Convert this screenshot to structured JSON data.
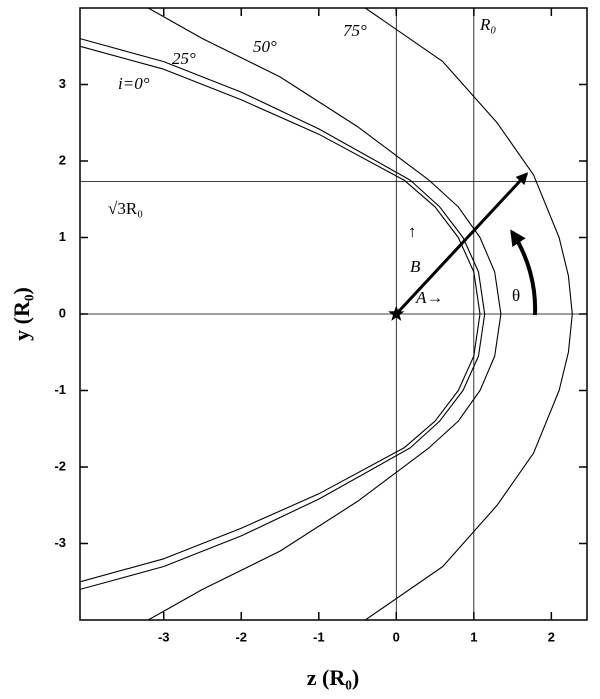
{
  "chart_data": {
    "type": "line",
    "x_label": "z (R₀)",
    "y_label": "y (R₀)",
    "xlim": [
      -4.08,
      2.46
    ],
    "ylim": [
      -4,
      4
    ],
    "xticks": [
      -3,
      -2,
      -1,
      0,
      1,
      2
    ],
    "yticks": [
      -3,
      -2,
      -1,
      0,
      1,
      2,
      3
    ],
    "color": "#000000",
    "series": [
      {
        "name": "i=0°",
        "x": [
          -4.08,
          -3,
          -2,
          -1,
          0.1,
          0.5,
          0.8,
          1.0,
          1.08,
          1.0,
          0.8,
          0.5,
          0.1,
          -1,
          -2,
          -3,
          -4.08
        ],
        "values": [
          3.5,
          3.2,
          2.8,
          2.35,
          1.75,
          1.4,
          1.0,
          0.55,
          0,
          -0.55,
          -1.0,
          -1.4,
          -1.75,
          -2.35,
          -2.8,
          -3.2,
          -3.5
        ]
      },
      {
        "name": "25°",
        "x": [
          -4.08,
          -3,
          -2,
          -1,
          0.18,
          0.56,
          0.86,
          1.06,
          1.14,
          1.06,
          0.86,
          0.56,
          0.18,
          -1,
          -2,
          -3,
          -4.08
        ],
        "values": [
          3.6,
          3.3,
          2.9,
          2.42,
          1.75,
          1.4,
          1.0,
          0.55,
          0,
          -0.55,
          -1.0,
          -1.4,
          -1.75,
          -2.42,
          -2.9,
          -3.3,
          -3.6
        ]
      },
      {
        "name": "50°",
        "x": [
          -3.2,
          -2.5,
          -1.5,
          -0.5,
          0.42,
          0.8,
          1.08,
          1.27,
          1.35,
          1.27,
          1.08,
          0.8,
          0.42,
          -0.5,
          -1.5,
          -2.5,
          -3.2
        ],
        "values": [
          4.0,
          3.6,
          3.1,
          2.45,
          1.75,
          1.4,
          1.0,
          0.55,
          0,
          -0.55,
          -1.0,
          -1.4,
          -1.75,
          -2.45,
          -3.1,
          -3.6,
          -4.0
        ]
      },
      {
        "name": "75°",
        "x": [
          -0.4,
          0.6,
          1.3,
          1.77,
          2.1,
          2.22,
          2.27,
          2.22,
          2.1,
          1.77,
          1.3,
          0.6,
          -0.4
        ],
        "values": [
          4.0,
          3.3,
          2.5,
          1.82,
          1.0,
          0.5,
          0,
          -0.5,
          -1.0,
          -1.82,
          -2.5,
          -3.3,
          -4.0
        ]
      }
    ],
    "vlines": [
      0,
      1
    ],
    "hlines": [
      0,
      1.732
    ],
    "vector": {
      "x": [
        0,
        1.68
      ],
      "values": [
        0,
        1.83
      ]
    },
    "annotations": [
      "R₀",
      "√3R₀",
      "↑",
      "B",
      "A→",
      "θ"
    ]
  }
}
